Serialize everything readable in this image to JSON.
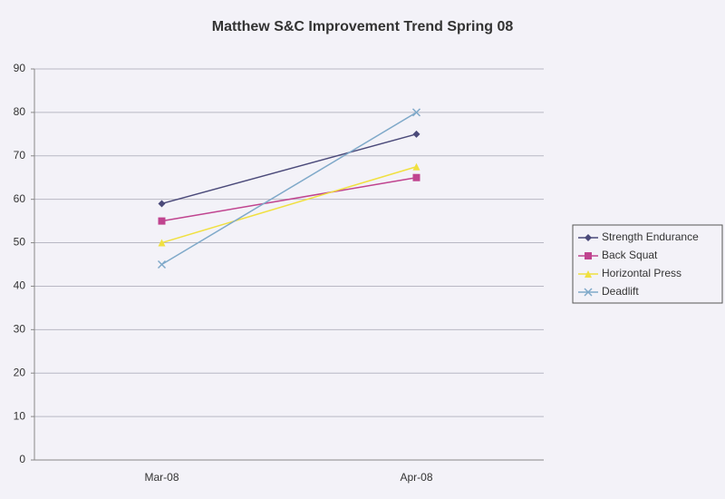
{
  "chart_data": {
    "type": "line",
    "title": "Matthew S&C Improvement Trend Spring 08",
    "categories": [
      "Mar-08",
      "Apr-08"
    ],
    "series": [
      {
        "name": "Strength Endurance",
        "color": "#4b4a7a",
        "marker": "diamond",
        "values": [
          59,
          75
        ]
      },
      {
        "name": "Back Squat",
        "color": "#c0448f",
        "marker": "square",
        "values": [
          55,
          65
        ]
      },
      {
        "name": "Horizontal Press",
        "color": "#f0e040",
        "marker": "triangle",
        "values": [
          50,
          67.5
        ]
      },
      {
        "name": "Deadlift",
        "color": "#7fa9c9",
        "marker": "x",
        "values": [
          45,
          80
        ]
      }
    ],
    "ylim": [
      0,
      90
    ],
    "yticks": [
      0,
      10,
      20,
      30,
      40,
      50,
      60,
      70,
      80,
      90
    ],
    "grid": true,
    "legend": "right"
  }
}
